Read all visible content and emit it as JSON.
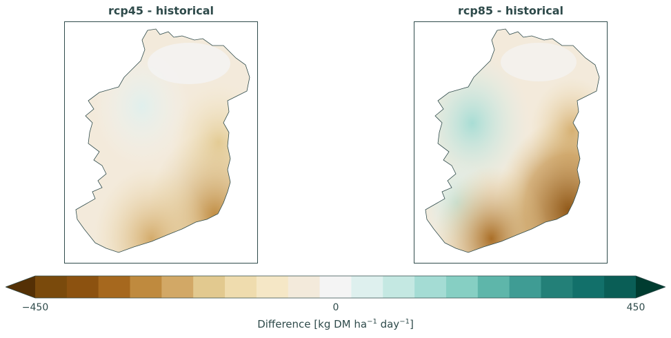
{
  "chart_data": [
    {
      "type": "heatmap",
      "subtype": "choropleth-map",
      "title": "rcp45 - historical",
      "region": "Ireland",
      "pattern": {
        "north_west": "near 0 (very slightly positive)",
        "midlands": "slightly negative",
        "east_coast": "moderately negative",
        "south_coast": "strongly negative"
      }
    },
    {
      "type": "heatmap",
      "subtype": "choropleth-map",
      "title": "rcp85 - historical",
      "region": "Ireland",
      "pattern": {
        "west": "positive (teal)",
        "midlands": "near 0",
        "east_coast": "strongly negative",
        "south_coast": "strongly negative"
      }
    }
  ],
  "colorbar": {
    "min": -450,
    "max": 450,
    "center": 0,
    "tick_labels": [
      "−450",
      "0",
      "450"
    ],
    "tick_values": [
      -450,
      0,
      450
    ],
    "extend": "both",
    "label": "Difference [kg DM ha",
    "label_sup1": "−1",
    "label_mid": " day",
    "label_sup2": "−1",
    "label_end": "]",
    "colors": [
      "#543005",
      "#7a4a0c",
      "#8c5210",
      "#a6681e",
      "#bf8a3e",
      "#d2a866",
      "#e2c98f",
      "#efdcae",
      "#f5e7c6",
      "#f3eadb",
      "#f4f4f4",
      "#def0ee",
      "#c4e8e2",
      "#a4dcd4",
      "#86cfc3",
      "#5eb6aa",
      "#3f9c94",
      "#238078",
      "#12706a",
      "#0a5e56",
      "#003c30"
    ]
  }
}
